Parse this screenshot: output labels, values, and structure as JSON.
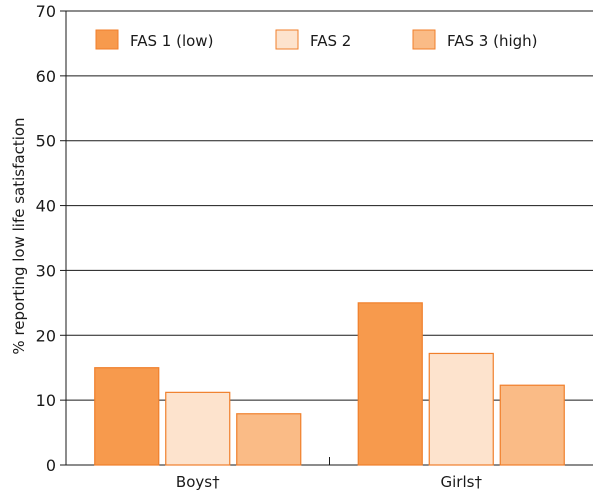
{
  "chart_data": {
    "type": "bar",
    "title": "",
    "xlabel": "",
    "ylabel": "% reporting low life satisfaction",
    "ylim": [
      0,
      70
    ],
    "yticks": [
      0,
      10,
      20,
      30,
      40,
      50,
      60,
      70
    ],
    "grid": true,
    "legend_position": "top",
    "categories": [
      "Boys†",
      "Girls†"
    ],
    "series": [
      {
        "name": "FAS 1 (low)",
        "values": [
          15,
          25
        ],
        "color": "#f79a4d"
      },
      {
        "name": "FAS 2",
        "values": [
          11.2,
          17.2
        ],
        "color": "#fde3cd"
      },
      {
        "name": "FAS 3 (high)",
        "values": [
          7.9,
          12.3
        ],
        "color": "#fabb86"
      }
    ],
    "bar_edge_color": "#f07f2b"
  }
}
